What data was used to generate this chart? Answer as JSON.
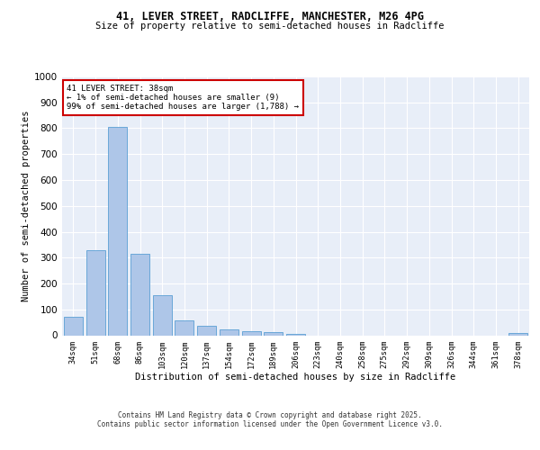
{
  "title1": "41, LEVER STREET, RADCLIFFE, MANCHESTER, M26 4PG",
  "title2": "Size of property relative to semi-detached houses in Radcliffe",
  "xlabel": "Distribution of semi-detached houses by size in Radcliffe",
  "ylabel": "Number of semi-detached properties",
  "categories": [
    "34sqm",
    "51sqm",
    "68sqm",
    "86sqm",
    "103sqm",
    "120sqm",
    "137sqm",
    "154sqm",
    "172sqm",
    "189sqm",
    "206sqm",
    "223sqm",
    "240sqm",
    "258sqm",
    "275sqm",
    "292sqm",
    "309sqm",
    "326sqm",
    "344sqm",
    "361sqm",
    "378sqm"
  ],
  "values": [
    72,
    330,
    805,
    315,
    155,
    57,
    35,
    22,
    17,
    11,
    5,
    0,
    0,
    0,
    0,
    0,
    0,
    0,
    0,
    0,
    9
  ],
  "bar_color": "#aec6e8",
  "bar_edge_color": "#5a9fd4",
  "annotation_text": "41 LEVER STREET: 38sqm\n← 1% of semi-detached houses are smaller (9)\n99% of semi-detached houses are larger (1,788) →",
  "annotation_box_color": "#ffffff",
  "annotation_box_edge": "#cc0000",
  "ylim": [
    0,
    1000
  ],
  "yticks": [
    0,
    100,
    200,
    300,
    400,
    500,
    600,
    700,
    800,
    900,
    1000
  ],
  "background_color": "#e8eef8",
  "grid_color": "#ffffff",
  "footer_line1": "Contains HM Land Registry data © Crown copyright and database right 2025.",
  "footer_line2": "Contains public sector information licensed under the Open Government Licence v3.0."
}
